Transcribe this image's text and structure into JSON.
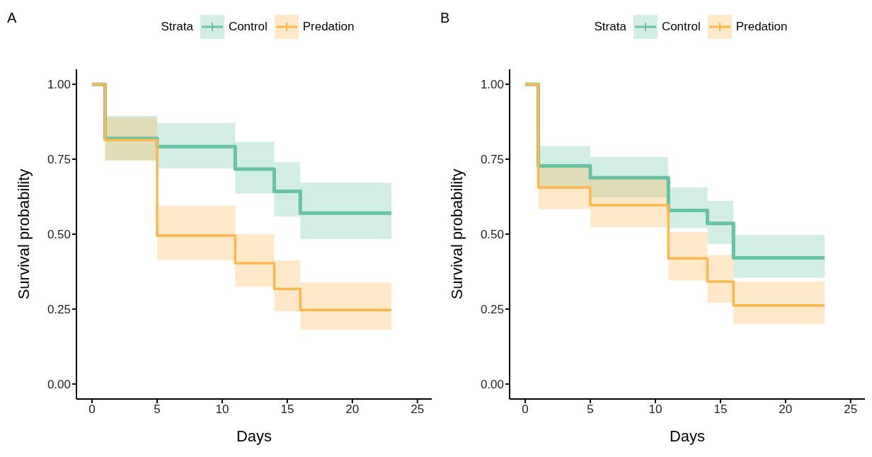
{
  "chart_data": [
    {
      "type": "step",
      "title": "A",
      "legend_title": "Strata",
      "xlabel": "Days",
      "ylabel": "Survival probability",
      "xlim": [
        -1.2,
        26.1
      ],
      "xticks": [
        0,
        5,
        10,
        15,
        20,
        25
      ],
      "ylim": [
        -0.05,
        1.05
      ],
      "yticks": [
        {
          "value": 0,
          "label": "0.00"
        },
        {
          "value": 0.25,
          "label": "0.25"
        },
        {
          "value": 0.5,
          "label": "0.50"
        },
        {
          "value": 0.75,
          "label": "0.75"
        },
        {
          "value": 1,
          "label": "1.00"
        }
      ],
      "grid": false,
      "legend": "top",
      "line_style": "solid",
      "series": [
        {
          "name": "Control",
          "color": "#66c2a5",
          "x": [
            0,
            1,
            5,
            11,
            14,
            16,
            23
          ],
          "values": [
            1,
            0.819,
            0.792,
            0.717,
            0.643,
            0.57,
            0.57
          ],
          "lower": [
            null,
            0.747,
            0.719,
            0.636,
            0.559,
            0.484,
            0.484
          ],
          "upper": [
            null,
            0.894,
            0.871,
            0.808,
            0.74,
            0.672,
            0.672
          ]
        },
        {
          "name": "Predation",
          "color": "#ffb74d",
          "x": [
            0,
            1,
            5,
            11,
            14,
            16,
            23
          ],
          "values": [
            1,
            0.814,
            0.495,
            0.403,
            0.317,
            0.247,
            0.247
          ],
          "lower": [
            null,
            0.745,
            0.414,
            0.324,
            0.242,
            0.181,
            0.181
          ],
          "upper": [
            null,
            0.889,
            0.595,
            0.5,
            0.412,
            0.339,
            0.339
          ]
        }
      ]
    },
    {
      "type": "step",
      "title": "B",
      "legend_title": "Strata",
      "xlabel": "Days",
      "ylabel": "Survival probability",
      "xlim": [
        -1.2,
        26.1
      ],
      "xticks": [
        0,
        5,
        10,
        15,
        20,
        25
      ],
      "ylim": [
        -0.05,
        1.05
      ],
      "yticks": [
        {
          "value": 0,
          "label": "0.00"
        },
        {
          "value": 0.25,
          "label": "0.25"
        },
        {
          "value": 0.5,
          "label": "0.50"
        },
        {
          "value": 0.75,
          "label": "0.75"
        },
        {
          "value": 1,
          "label": "1.00"
        }
      ],
      "grid": false,
      "legend": "top",
      "line_style": "solid",
      "series": [
        {
          "name": "Control",
          "color": "#66c2a5",
          "x": [
            0,
            1,
            5,
            11,
            14,
            16,
            23
          ],
          "values": [
            1,
            0.728,
            0.688,
            0.579,
            0.536,
            0.421,
            0.421
          ],
          "lower": [
            null,
            0.652,
            0.622,
            0.52,
            0.468,
            0.355,
            0.355
          ],
          "upper": [
            null,
            0.794,
            0.758,
            0.656,
            0.611,
            0.498,
            0.498
          ]
        },
        {
          "name": "Predation",
          "color": "#ffb74d",
          "x": [
            0,
            1,
            5,
            11,
            14,
            16,
            23
          ],
          "values": [
            1,
            0.656,
            0.597,
            0.419,
            0.342,
            0.262,
            0.262
          ],
          "lower": [
            null,
            0.584,
            0.523,
            0.346,
            0.271,
            0.199,
            0.199
          ],
          "upper": [
            null,
            0.733,
            0.686,
            0.507,
            0.43,
            0.342,
            0.342
          ]
        }
      ]
    }
  ]
}
